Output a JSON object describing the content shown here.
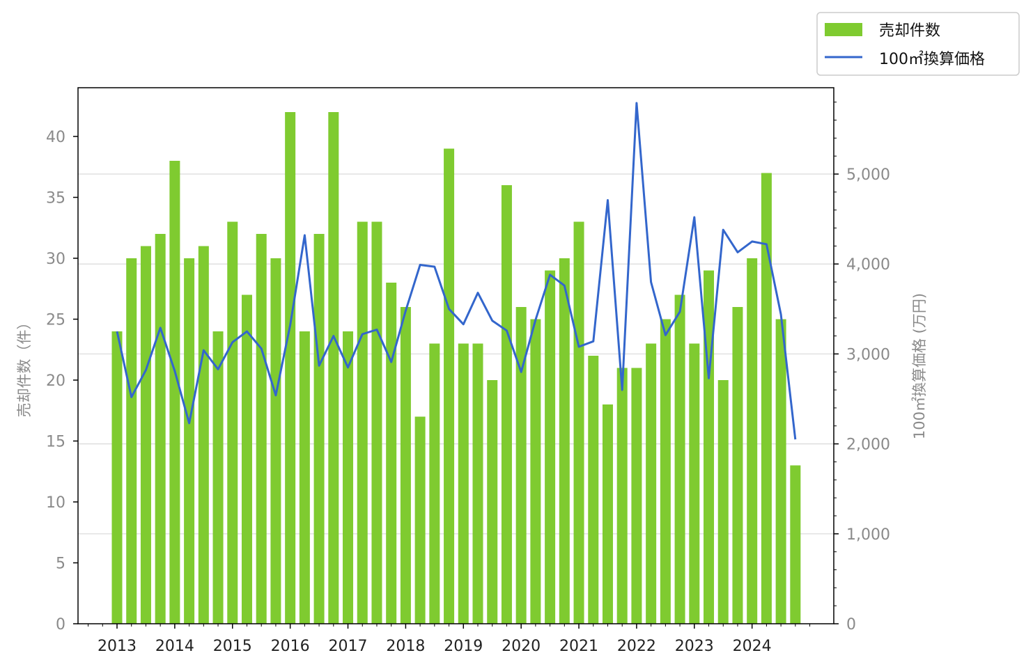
{
  "colors": {
    "bar": "#7fcb30",
    "line": "#3366cc",
    "grid": "#d9d9d9",
    "axis": "#000000",
    "tick_text": "#8a8a8a"
  },
  "chart_data": {
    "type": "bar",
    "categories": [
      "2013 Q1",
      "2013 Q2",
      "2013 Q3",
      "2013 Q4",
      "2014 Q1",
      "2014 Q2",
      "2014 Q3",
      "2014 Q4",
      "2015 Q1",
      "2015 Q2",
      "2015 Q3",
      "2015 Q4",
      "2016 Q1",
      "2016 Q2",
      "2016 Q3",
      "2016 Q4",
      "2017 Q1",
      "2017 Q2",
      "2017 Q3",
      "2017 Q4",
      "2018 Q1",
      "2018 Q2",
      "2018 Q3",
      "2018 Q4",
      "2019 Q1",
      "2019 Q2",
      "2019 Q3",
      "2019 Q4",
      "2020 Q1",
      "2020 Q2",
      "2020 Q3",
      "2020 Q4",
      "2021 Q1",
      "2021 Q2",
      "2021 Q3",
      "2021 Q4",
      "2022 Q1",
      "2022 Q2",
      "2022 Q3",
      "2022 Q4",
      "2023 Q1",
      "2023 Q2",
      "2023 Q3",
      "2023 Q4",
      "2024 Q1",
      "2024 Q2",
      "2024 Q3",
      "2024 Q4"
    ],
    "x_tick_labels": [
      "2013",
      "2014",
      "2015",
      "2016",
      "2017",
      "2018",
      "2019",
      "2020",
      "2021",
      "2022",
      "2023",
      "2024"
    ],
    "series": [
      {
        "name": "売却件数",
        "type": "bar",
        "axis": "left",
        "values": [
          24,
          30,
          31,
          32,
          38,
          30,
          31,
          24,
          33,
          27,
          32,
          30,
          42,
          24,
          32,
          42,
          24,
          33,
          33,
          28,
          26,
          17,
          23,
          39,
          23,
          23,
          20,
          36,
          26,
          25,
          29,
          30,
          33,
          22,
          18,
          21,
          21,
          23,
          25,
          27,
          23,
          29,
          20,
          26,
          30,
          37,
          25,
          13
        ]
      },
      {
        "name": "100㎡換算価格",
        "type": "line",
        "axis": "right",
        "values": [
          3250,
          2520,
          2820,
          3290,
          2810,
          2230,
          3040,
          2830,
          3130,
          3250,
          3060,
          2540,
          3320,
          4320,
          2870,
          3200,
          2850,
          3220,
          3270,
          2910,
          3480,
          3990,
          3970,
          3500,
          3330,
          3680,
          3370,
          3260,
          2800,
          3380,
          3880,
          3760,
          3080,
          3140,
          4710,
          2600,
          5790,
          3800,
          3210,
          3470,
          4520,
          2730,
          4380,
          4130,
          4250,
          4220,
          3440,
          2050
        ]
      }
    ],
    "y_left": {
      "label": "売却件数（件）",
      "lim": [
        0,
        44
      ],
      "ticks": [
        0,
        5,
        10,
        15,
        20,
        25,
        30,
        35,
        40
      ]
    },
    "y_right": {
      "label": "100㎡換算価格 (万円)",
      "lim": [
        0,
        5960
      ],
      "ticks": [
        0,
        1000,
        2000,
        3000,
        4000,
        5000
      ],
      "tick_labels": [
        "0",
        "1,000",
        "2,000",
        "3,000",
        "4,000",
        "5,000"
      ]
    },
    "grid": "horizontal, right axis",
    "legend": {
      "placement": "top-right",
      "entries": [
        "売却件数",
        "100㎡換算価格"
      ]
    }
  }
}
